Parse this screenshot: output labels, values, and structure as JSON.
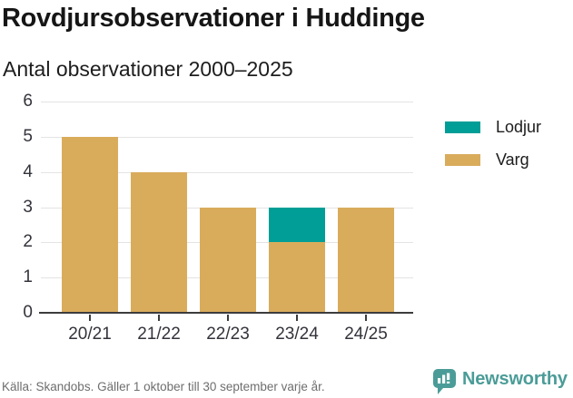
{
  "header": {
    "title": "Rovdjursobservationer i Huddinge",
    "subtitle": "Antal observationer 2000–2025"
  },
  "chart_data": {
    "type": "bar",
    "stacked": true,
    "title": "Rovdjursobservationer i Huddinge",
    "subtitle": "Antal observationer 2000–2025",
    "categories": [
      "20/21",
      "21/22",
      "22/23",
      "23/24",
      "24/25"
    ],
    "series": [
      {
        "name": "Varg",
        "color": "#d9ac5c",
        "values": [
          5,
          4,
          3,
          2,
          3
        ]
      },
      {
        "name": "Lodjur",
        "color": "#009e96",
        "values": [
          0,
          0,
          0,
          1,
          0
        ]
      }
    ],
    "xlabel": "",
    "ylabel": "",
    "ylim": [
      0,
      6
    ],
    "yticks": [
      0,
      1,
      2,
      3,
      4,
      5,
      6
    ],
    "grid": true,
    "legend_position": "right"
  },
  "legend": {
    "items": [
      {
        "label": "Lodjur",
        "color": "#009e96"
      },
      {
        "label": "Varg",
        "color": "#d9ac5c"
      }
    ]
  },
  "footer": {
    "source": "Källa: Skandobs. Gäller 1 oktober till 30 september varje år.",
    "brand": "Newsworthy",
    "brand_color": "#4b9c98"
  },
  "colors": {
    "lodjur": "#009e96",
    "varg": "#d9ac5c",
    "gridline": "#e4e4e4",
    "axis": "#3c3c3c",
    "axis_text": "#33333b",
    "source_text": "#6e6e6e"
  }
}
